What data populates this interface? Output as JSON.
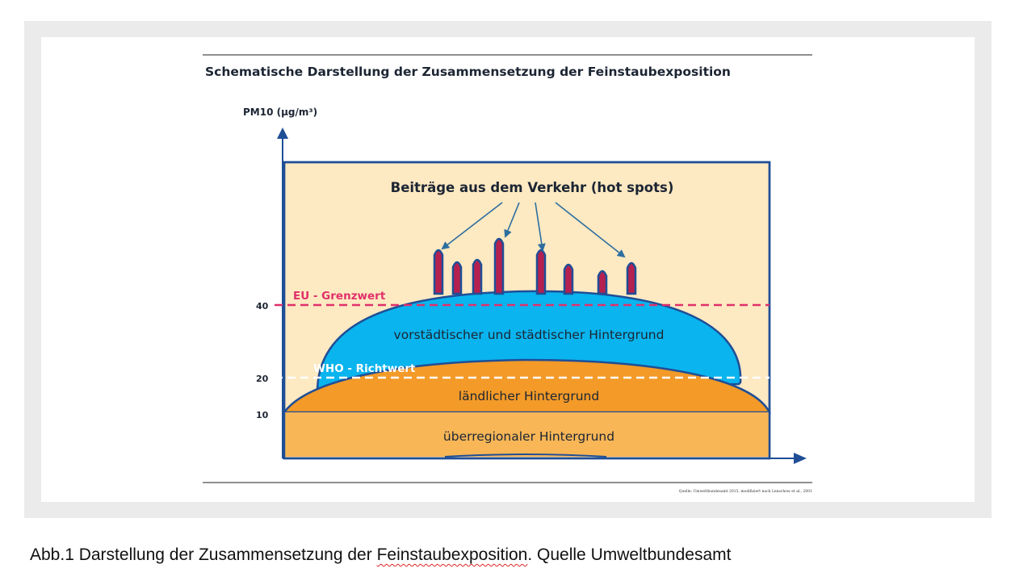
{
  "figure": {
    "title": "Schematische Darstellung der Zusammensetzung der Feinstaubexposition",
    "y_axis_label": "PM10 (µg/m³)",
    "y_ticks": [
      "40",
      "20",
      "10"
    ],
    "traffic_label": "Beiträge aus dem Verkehr (hot spots)",
    "eu_limit_label": "EU - Grenzwert",
    "who_guideline_label": "WHO - Richtwert",
    "urban_layer_label": "vorstädtischer und städtischer  Hintergrund",
    "rural_layer_label": "ländlicher Hintergrund",
    "regional_layer_label": "überregionaler Hintergrund",
    "source_note": "Quelle: Umweltbundesamt 2015, modifiziert nach Lenschow et al., 2001"
  },
  "caption": {
    "before": "Abb.1 Darstellung der Zusammensetzung der ",
    "underlined": "Feinstaubexposition",
    "after": ". Quelle Umweltbundesamt"
  },
  "colors": {
    "box_fill": "#fde9c2",
    "box_stroke": "#1f4e96",
    "urban_fill": "#0ab4ee",
    "rural_fill": "#f39a28",
    "regional_fill": "#f8b657",
    "spike_fill": "#b4204f",
    "eu_line": "#e0306a",
    "who_line": "#ffffff",
    "text_dark": "#1c2533"
  }
}
